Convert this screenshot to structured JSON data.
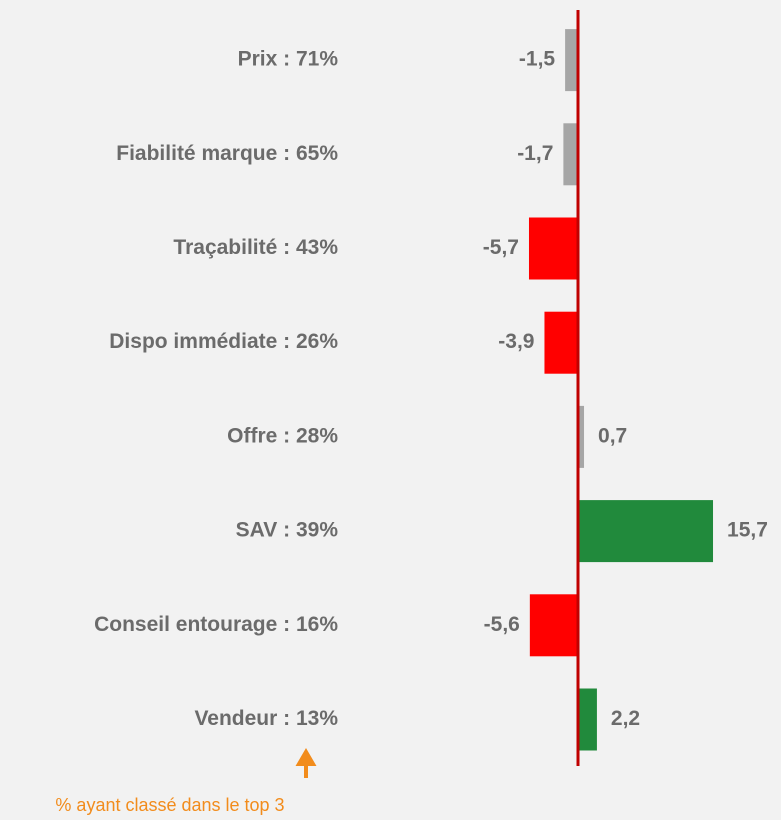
{
  "chart_data": {
    "type": "diverging-bar",
    "categories": [
      "Prix : 71%",
      "Fiabilité marque : 65%",
      "Traçabilité : 43%",
      "Dispo immédiate : 26%",
      "Offre : 28%",
      "SAV : 39%",
      "Conseil entourage : 16%",
      "Vendeur : 13%"
    ],
    "values": [
      -1.5,
      -1.7,
      -5.7,
      -3.9,
      0.7,
      15.7,
      -5.6,
      2.2
    ],
    "value_labels": [
      "-1,5",
      "-1,7",
      "-5,7",
      "-3,9",
      "0,7",
      "15,7",
      "-5,6",
      "2,2"
    ],
    "colors": [
      "#a6a6a6",
      "#a6a6a6",
      "#ff0000",
      "#ff0000",
      "#a6a6a6",
      "#218a3c",
      "#ff0000",
      "#218a3c"
    ],
    "annotation": "% ayant classé dans le top 3"
  }
}
